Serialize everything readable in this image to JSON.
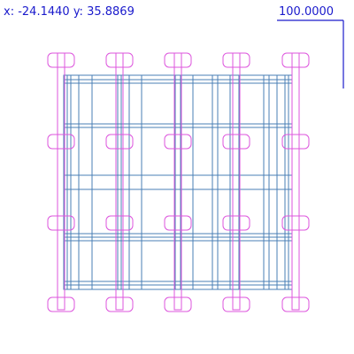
{
  "readout": {
    "x_label": "x:",
    "x_value": "-24.1440",
    "y_label": "y:",
    "y_value": "35.8869"
  },
  "scale": {
    "label": "100.0000"
  },
  "drawing": {
    "description_colors": {
      "grid_lines": "#4a7fb5",
      "fixtures": "#dd55dd",
      "ui_text": "#1a1acc",
      "background": "#ffffff"
    },
    "icons": [
      "grid-lines",
      "pad-fixture-icon",
      "scale-bar-icon"
    ]
  }
}
